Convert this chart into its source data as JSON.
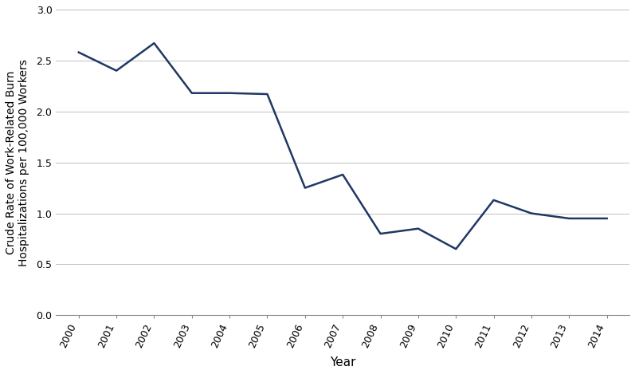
{
  "years": [
    2000,
    2001,
    2002,
    2003,
    2004,
    2005,
    2006,
    2007,
    2008,
    2009,
    2010,
    2011,
    2012,
    2013,
    2014
  ],
  "values": [
    2.58,
    2.4,
    2.67,
    2.18,
    2.18,
    2.17,
    1.25,
    1.38,
    0.8,
    0.85,
    0.65,
    1.13,
    1.0,
    0.95,
    0.95
  ],
  "line_color": "#1F3864",
  "line_width": 1.8,
  "ylabel": "Crude Rate of Work-Related Burn\nHospitalizations per 100,000 Workers",
  "xlabel": "Year",
  "ylim": [
    0.0,
    3.0
  ],
  "yticks": [
    0.0,
    0.5,
    1.0,
    1.5,
    2.0,
    2.5,
    3.0
  ],
  "background_color": "#ffffff",
  "grid_color": "#c0c0c0",
  "ylabel_fontsize": 10,
  "xlabel_fontsize": 11,
  "tick_fontsize": 9,
  "xlim_left": 1999.4,
  "xlim_right": 2014.6,
  "rotation": 65
}
